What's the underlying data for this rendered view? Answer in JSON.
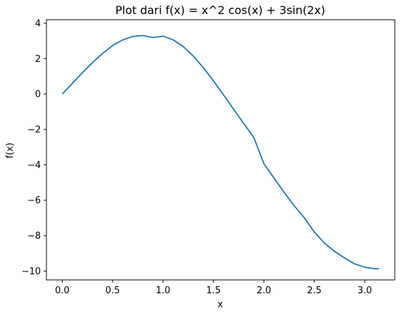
{
  "chart_data": {
    "type": "line",
    "title": "Plot dari f(x) = x^2 cos(x) + 3sin(2x)",
    "xlabel": "x",
    "ylabel": "f(x)",
    "xlim": [
      -0.157,
      3.299
    ],
    "ylim": [
      -10.5,
      4.2
    ],
    "xticks": [
      0.0,
      0.5,
      1.0,
      1.5,
      2.0,
      2.5,
      3.0
    ],
    "xtick_labels": [
      "0.0",
      "0.5",
      "1.0",
      "1.5",
      "2.0",
      "2.5",
      "3.0"
    ],
    "yticks": [
      4,
      2,
      0,
      -2,
      -4,
      -6,
      -8,
      -10
    ],
    "ytick_labels": [
      "4",
      "2",
      "0",
      "−2",
      "−4",
      "−6",
      "−8",
      "−10"
    ],
    "grid": false,
    "line_color": "#1f77b4",
    "series": [
      {
        "x": [
          0.0,
          0.1,
          0.2,
          0.3,
          0.4,
          0.5,
          0.6,
          0.7,
          0.8,
          0.9,
          1.0,
          1.1,
          1.2,
          1.3,
          1.4,
          1.5,
          1.6,
          1.7,
          1.8,
          1.9,
          2.0,
          2.1,
          2.2,
          2.3,
          2.4,
          2.5,
          2.6,
          2.7,
          2.8,
          2.9,
          3.0,
          3.1,
          3.1416
        ],
        "y": [
          0.0,
          0.606,
          1.207,
          1.779,
          2.294,
          2.744,
          3.058,
          3.254,
          3.306,
          3.192,
          3.268,
          3.064,
          2.681,
          2.144,
          1.484,
          0.743,
          -0.05,
          -0.862,
          -1.668,
          -2.453,
          -3.935,
          -4.742,
          -5.546,
          -6.301,
          -6.986,
          -7.79,
          -8.416,
          -8.882,
          -9.259,
          -9.594,
          -9.782,
          -9.869,
          -9.87
        ]
      }
    ]
  }
}
